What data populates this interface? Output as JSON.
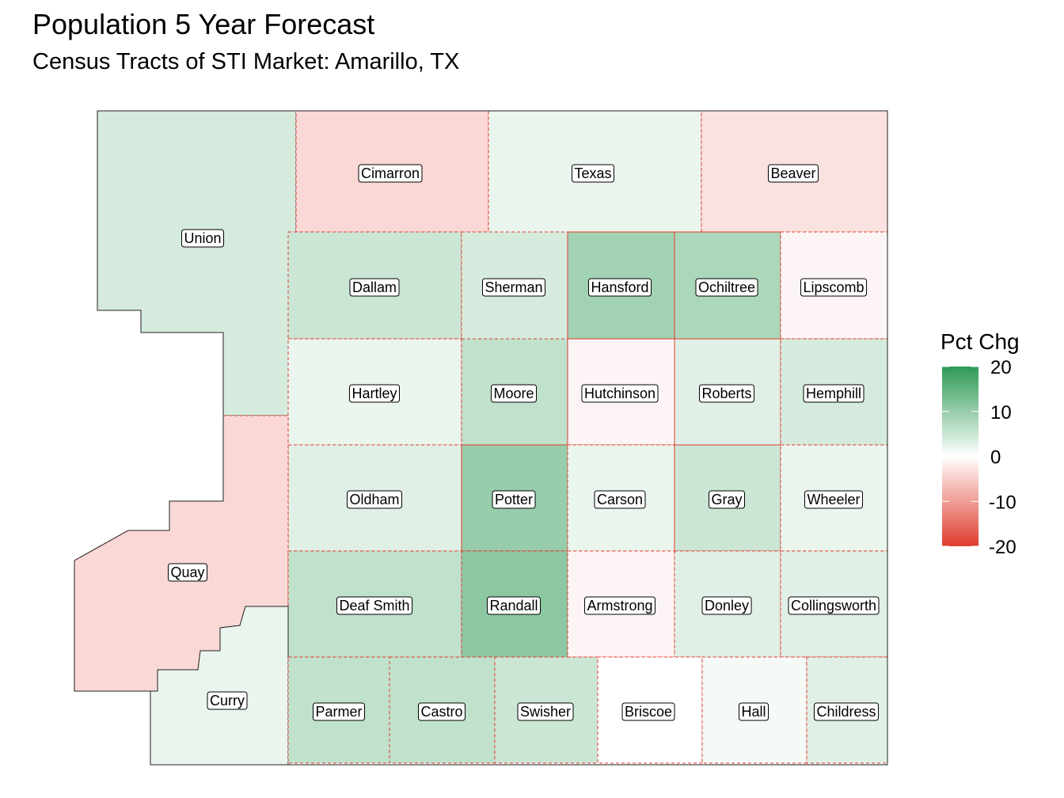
{
  "title": "Population 5 Year Forecast",
  "subtitle": "Census Tracts of STI Market: Amarillo, TX",
  "legend": {
    "title": "Pct Chg",
    "min": -20,
    "max": 20,
    "ticks": [
      20,
      10,
      0,
      -10,
      -20
    ],
    "low_color": "#e03c2e",
    "mid_color": "#ffffff",
    "high_color": "#2e9a55"
  },
  "counties": [
    {
      "name": "Union",
      "value": 4
    },
    {
      "name": "Cimarron",
      "value": -4
    },
    {
      "name": "Texas",
      "value": 2
    },
    {
      "name": "Beaver",
      "value": -3
    },
    {
      "name": "Dallam",
      "value": 5
    },
    {
      "name": "Sherman",
      "value": 4
    },
    {
      "name": "Hansford",
      "value": 9
    },
    {
      "name": "Ochiltree",
      "value": 8
    },
    {
      "name": "Lipscomb",
      "value": -1
    },
    {
      "name": "Hartley",
      "value": 2
    },
    {
      "name": "Moore",
      "value": 6
    },
    {
      "name": "Hutchinson",
      "value": -1
    },
    {
      "name": "Roberts",
      "value": 3
    },
    {
      "name": "Hemphill",
      "value": 4
    },
    {
      "name": "Oldham",
      "value": 3
    },
    {
      "name": "Potter",
      "value": 10
    },
    {
      "name": "Carson",
      "value": 2
    },
    {
      "name": "Gray",
      "value": 5
    },
    {
      "name": "Wheeler",
      "value": 2
    },
    {
      "name": "Quay",
      "value": -4
    },
    {
      "name": "Deaf Smith",
      "value": 6
    },
    {
      "name": "Randall",
      "value": 11
    },
    {
      "name": "Armstrong",
      "value": -1
    },
    {
      "name": "Donley",
      "value": 3
    },
    {
      "name": "Collingsworth",
      "value": 3
    },
    {
      "name": "Curry",
      "value": 2
    },
    {
      "name": "Parmer",
      "value": 6
    },
    {
      "name": "Castro",
      "value": 6
    },
    {
      "name": "Swisher",
      "value": 5
    },
    {
      "name": "Briscoe",
      "value": 0
    },
    {
      "name": "Hall",
      "value": 1
    },
    {
      "name": "Childress",
      "value": 3
    }
  ]
}
